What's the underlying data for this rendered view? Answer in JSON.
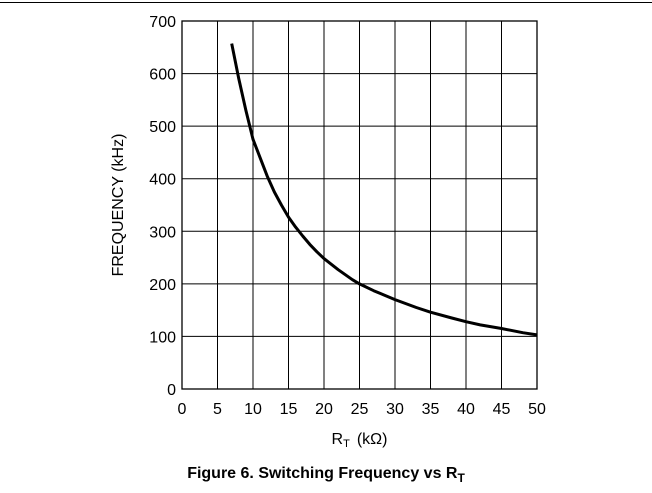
{
  "chart_data": {
    "type": "line",
    "xlabel": {
      "main": "R",
      "sub": "T",
      "unit": "(kΩ)"
    },
    "ylabel": "FREQUENCY (kHz)",
    "xlim": [
      0,
      50
    ],
    "ylim": [
      0,
      700
    ],
    "x_ticks": [
      "0",
      "5",
      "10",
      "15",
      "20",
      "25",
      "30",
      "35",
      "40",
      "45",
      "50"
    ],
    "y_ticks": [
      "0",
      "100",
      "200",
      "300",
      "400",
      "500",
      "600",
      "700"
    ],
    "grid": true,
    "series": [
      {
        "color": "#000000",
        "x": [
          7,
          8,
          9,
          10,
          11,
          12,
          13,
          14,
          15,
          16,
          17,
          18,
          19,
          20,
          22,
          24,
          25,
          27,
          30,
          33,
          35,
          38,
          40,
          42,
          45,
          48,
          50
        ],
        "y": [
          657,
          590,
          530,
          475,
          440,
          405,
          375,
          350,
          327,
          308,
          291,
          275,
          261,
          248,
          227,
          208,
          200,
          187,
          170,
          155,
          146,
          135,
          128,
          122,
          115,
          107,
          103
        ]
      }
    ]
  },
  "caption": {
    "text": "Figure 6. Switching Frequency vs R",
    "sub": "T"
  }
}
